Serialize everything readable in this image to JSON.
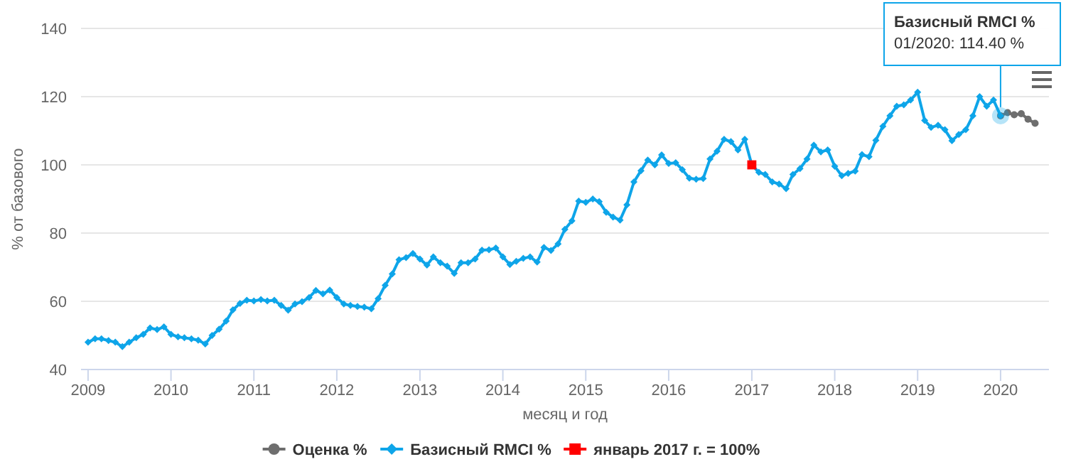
{
  "chart_data": {
    "type": "line",
    "xlabel": "месяц и год",
    "ylabel": "% от базового",
    "xlim": [
      "2008-12",
      "2020-08"
    ],
    "ylim": [
      40,
      140
    ],
    "xticks": [
      "2009",
      "2010",
      "2011",
      "2012",
      "2013",
      "2014",
      "2015",
      "2016",
      "2017",
      "2018",
      "2019",
      "2020"
    ],
    "yticks": [
      40,
      60,
      80,
      100,
      120,
      140
    ],
    "grid": "y",
    "legend": "bottom",
    "series": [
      {
        "name": "Оценка %",
        "color": "#6e6e6e",
        "marker": "circle",
        "x": [
          "2020-01",
          "2020-02",
          "2020-03",
          "2020-04",
          "2020-05",
          "2020-06"
        ],
        "values": [
          114.4,
          115.3,
          114.7,
          115,
          113.4,
          112.2
        ]
      },
      {
        "name": "Базисный RMCI %",
        "color": "#0ea5e9",
        "marker": "diamond",
        "x": [
          "2009-01",
          "2009-02",
          "2009-03",
          "2009-04",
          "2009-05",
          "2009-06",
          "2009-07",
          "2009-08",
          "2009-09",
          "2009-10",
          "2009-11",
          "2009-12",
          "2010-01",
          "2010-02",
          "2010-03",
          "2010-04",
          "2010-05",
          "2010-06",
          "2010-07",
          "2010-08",
          "2010-09",
          "2010-10",
          "2010-11",
          "2010-12",
          "2011-01",
          "2011-02",
          "2011-03",
          "2011-04",
          "2011-05",
          "2011-06",
          "2011-07",
          "2011-08",
          "2011-09",
          "2011-10",
          "2011-11",
          "2011-12",
          "2012-01",
          "2012-02",
          "2012-03",
          "2012-04",
          "2012-05",
          "2012-06",
          "2012-07",
          "2012-08",
          "2012-09",
          "2012-10",
          "2012-11",
          "2012-12",
          "2013-01",
          "2013-02",
          "2013-03",
          "2013-04",
          "2013-05",
          "2013-06",
          "2013-07",
          "2013-08",
          "2013-09",
          "2013-10",
          "2013-11",
          "2013-12",
          "2014-01",
          "2014-02",
          "2014-03",
          "2014-04",
          "2014-05",
          "2014-06",
          "2014-07",
          "2014-08",
          "2014-09",
          "2014-10",
          "2014-11",
          "2014-12",
          "2015-01",
          "2015-02",
          "2015-03",
          "2015-04",
          "2015-05",
          "2015-06",
          "2015-07",
          "2015-08",
          "2015-09",
          "2015-10",
          "2015-11",
          "2015-12",
          "2016-01",
          "2016-02",
          "2016-03",
          "2016-04",
          "2016-05",
          "2016-06",
          "2016-07",
          "2016-08",
          "2016-09",
          "2016-10",
          "2016-11",
          "2016-12",
          "2017-01",
          "2017-02",
          "2017-03",
          "2017-04",
          "2017-05",
          "2017-06",
          "2017-07",
          "2017-08",
          "2017-09",
          "2017-10",
          "2017-11",
          "2017-12",
          "2018-01",
          "2018-02",
          "2018-03",
          "2018-04",
          "2018-05",
          "2018-06",
          "2018-07",
          "2018-08",
          "2018-09",
          "2018-10",
          "2018-11",
          "2018-12",
          "2019-01",
          "2019-02",
          "2019-03",
          "2019-04",
          "2019-05",
          "2019-06",
          "2019-07",
          "2019-08",
          "2019-09",
          "2019-10",
          "2019-11",
          "2019-12",
          "2020-01"
        ],
        "values": [
          48,
          49,
          49,
          48.5,
          48,
          46.7,
          48,
          49.3,
          50.3,
          52.2,
          51.7,
          52.5,
          50.3,
          49.6,
          49.3,
          49,
          48.6,
          47.5,
          50,
          51.8,
          54.2,
          57.5,
          59.4,
          60.3,
          60.1,
          60.5,
          60.1,
          60.3,
          58.8,
          57.4,
          59.2,
          59.9,
          61.1,
          63.2,
          62.2,
          63.3,
          61.1,
          59.2,
          58.8,
          58.5,
          58.3,
          57.8,
          60.8,
          64.7,
          68,
          72.2,
          72.8,
          74,
          72.4,
          70.6,
          73,
          71.3,
          70.3,
          68.2,
          71.3,
          71.3,
          72.4,
          75,
          75.1,
          75.6,
          73,
          70.8,
          71.7,
          72.6,
          73,
          71.5,
          75.8,
          74.9,
          76.8,
          81.1,
          83.6,
          89.4,
          89,
          90,
          89.2,
          86.1,
          84.7,
          83.8,
          88.3,
          95,
          98.3,
          101.4,
          100,
          102.9,
          100.4,
          100.6,
          98.6,
          96.1,
          95.8,
          96,
          101.7,
          104,
          107.5,
          106.8,
          104.4,
          107.5,
          100,
          97.8,
          97.2,
          95,
          94.4,
          93,
          97.2,
          98.9,
          101.7,
          105.8,
          103.8,
          104.4,
          99.6,
          96.8,
          97.5,
          98.2,
          103,
          102.4,
          107.2,
          111.3,
          114.4,
          117.2,
          117.6,
          119,
          121.3,
          113,
          111,
          111.6,
          110.3,
          107.1,
          108.9,
          110.3,
          114.4,
          120,
          117.2,
          119,
          114.4
        ]
      },
      {
        "name": "январь 2017 г. = 100%",
        "color": "#ff0000",
        "marker": "square",
        "x": [
          "2017-01"
        ],
        "values": [
          100
        ]
      }
    ],
    "annotations": [
      {
        "text": "Базисный RMCI %\n01/2020: 114.40 %",
        "x": "2020-01",
        "y": 114.4
      }
    ]
  }
}
